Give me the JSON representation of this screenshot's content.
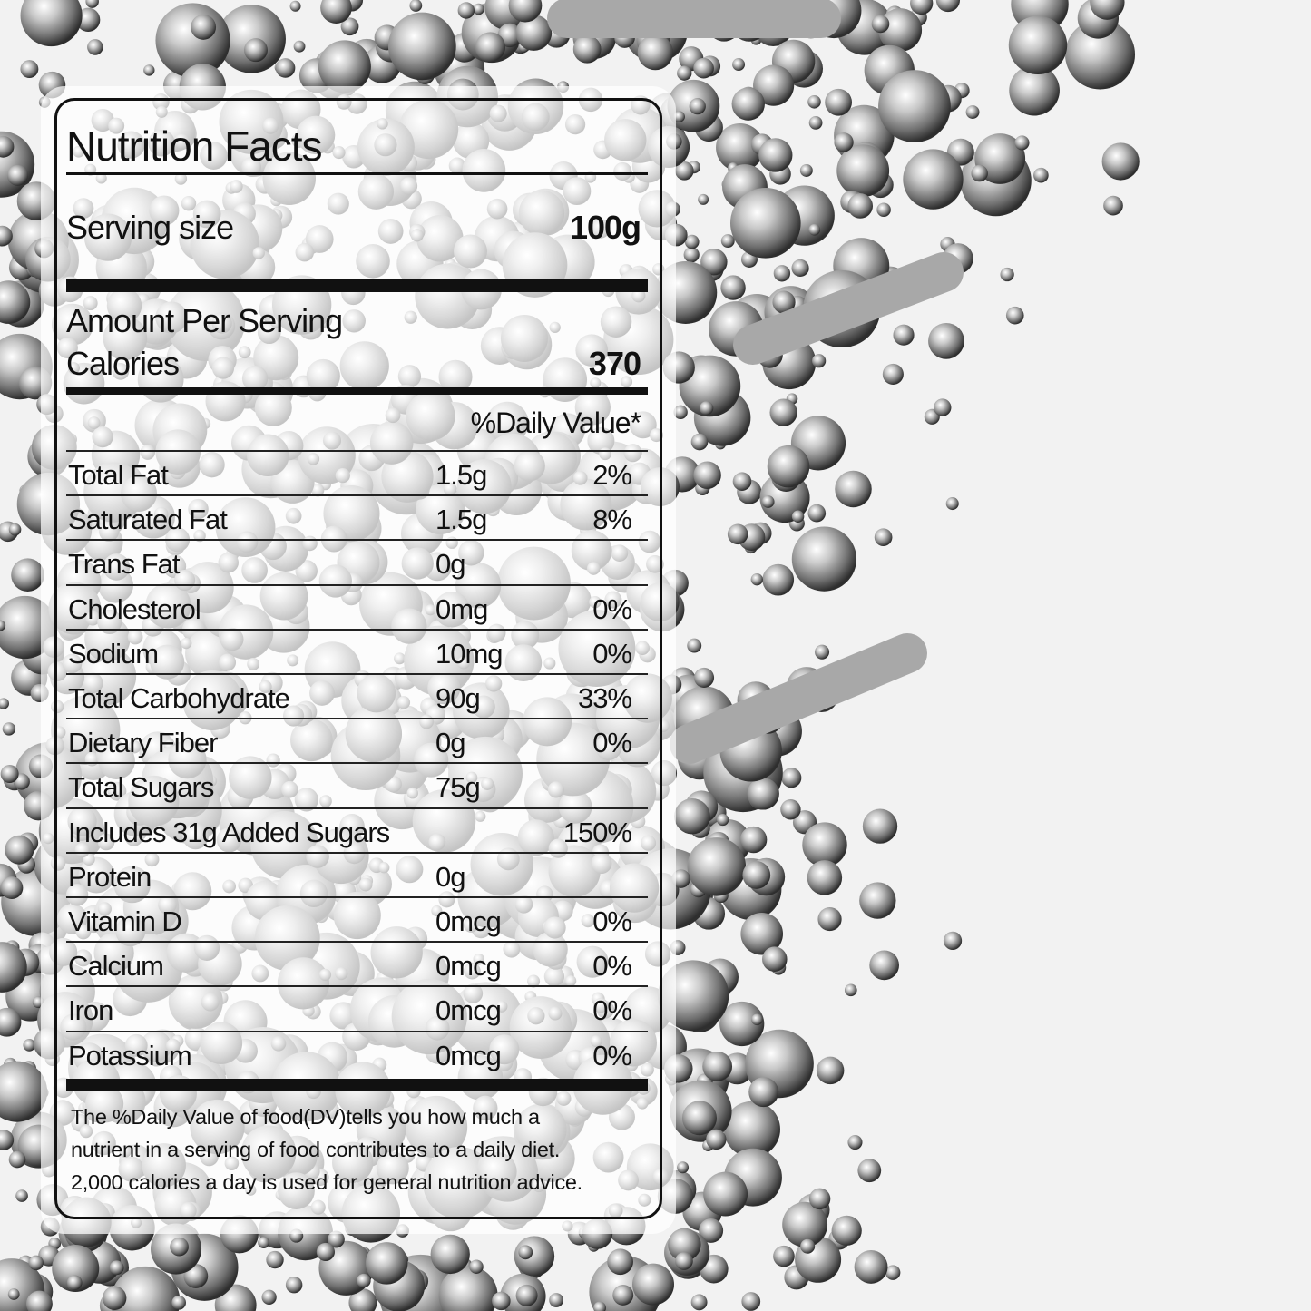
{
  "label": {
    "title": "Nutrition Facts",
    "serving_size_label": "Serving size",
    "serving_size_value": "100g",
    "amount_per_serving": "Amount Per Serving",
    "calories_label": "Calories",
    "calories_value": "370",
    "daily_value_header": "%Daily Value*",
    "rows": [
      {
        "name": "Total Fat",
        "amount": "1.5g",
        "dv": "2%"
      },
      {
        "name": "Saturated Fat",
        "amount": "1.5g",
        "dv": "8%"
      },
      {
        "name": "Trans Fat",
        "amount": "0g",
        "dv": ""
      },
      {
        "name": "Cholesterol",
        "amount": "0mg",
        "dv": "0%"
      },
      {
        "name": "Sodium",
        "amount": "10mg",
        "dv": "0%"
      },
      {
        "name": "Total Carbohydrate",
        "amount": "90g",
        "dv": "33%"
      },
      {
        "name": "Dietary Fiber",
        "amount": "0g",
        "dv": "0%"
      },
      {
        "name": "Total Sugars",
        "amount": "75g",
        "dv": ""
      },
      {
        "name": "Includes 31g Added Sugars",
        "amount": "",
        "dv": "150%"
      },
      {
        "name": "Protein",
        "amount": "0g",
        "dv": ""
      },
      {
        "name": "Vitamin D",
        "amount": "0mcg",
        "dv": "0%"
      },
      {
        "name": "Calcium",
        "amount": "0mcg",
        "dv": "0%"
      },
      {
        "name": "Iron",
        "amount": "0mcg",
        "dv": "0%"
      },
      {
        "name": "Potassium",
        "amount": "0mcg",
        "dv": "0%"
      }
    ],
    "footnote": [
      "The %Daily Value of food(DV)tells you how much a",
      "nutrient in a serving of food contributes to a daily diet.",
      "2,000 calories a day is used for general nutrition advice."
    ]
  },
  "background": {
    "subject": "silver sugar pearl sprinkles",
    "colors": [
      "#f2f2f2",
      "#9a9a9a",
      "#ffffff",
      "#3a3a3a"
    ]
  }
}
